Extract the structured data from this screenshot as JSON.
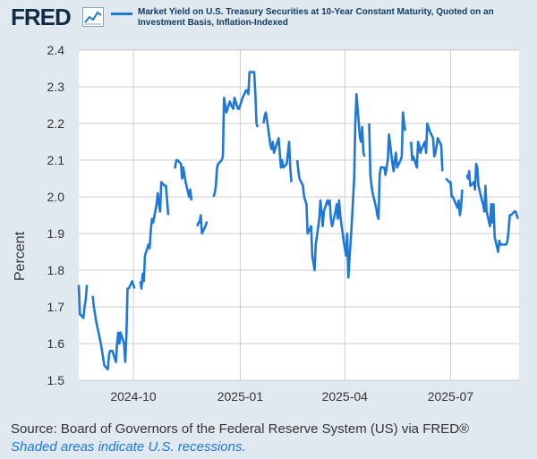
{
  "header": {
    "logo": "FRED",
    "graph_icon": "line-graph-icon",
    "legend_label": "Market Yield on U.S. Treasury Securities at 10-Year Constant Maturity, Quoted on an Investment Basis, Inflation-Indexed"
  },
  "colors": {
    "background": "#e1e9f0",
    "plot_background": "#ffffff",
    "series": "#1f78d6",
    "grid": "#cccccc"
  },
  "footer": {
    "source": "Source: Board of Governors of the Federal Reserve System (US) via FRED®",
    "notes": "Shaded areas indicate U.S. recessions."
  },
  "chart_data": {
    "type": "line",
    "xlabel": "",
    "ylabel": "Percent",
    "ylim": [
      1.5,
      2.4
    ],
    "yticks": [
      "1.5",
      "1.6",
      "1.7",
      "1.8",
      "1.9",
      "2.0",
      "2.1",
      "2.2",
      "2.3",
      "2.4"
    ],
    "xlim": [
      "2024-08-15",
      "2025-08-29"
    ],
    "xticks": [
      {
        "date": "2024-10-01",
        "label": "2024-10"
      },
      {
        "date": "2025-01-01",
        "label": "2025-01"
      },
      {
        "date": "2025-04-01",
        "label": "2025-04"
      },
      {
        "date": "2025-07-01",
        "label": "2025-07"
      }
    ],
    "grid": true,
    "series": [
      {
        "name": "Market Yield on U.S. Treasury Securities at 10-Year Constant Maturity, Quoted on an Investment Basis, Inflation-Indexed",
        "points": [
          [
            "2024-08-15",
            1.76
          ],
          [
            "2024-08-16",
            1.68
          ],
          [
            "2024-08-19",
            1.67
          ],
          [
            "2024-08-20",
            1.7
          ],
          [
            "2024-08-21",
            1.72
          ],
          [
            "2024-08-22",
            1.76
          ],
          [
            "2024-08-23",
            null
          ],
          [
            "2024-08-27",
            1.73
          ],
          [
            "2024-08-28",
            1.7
          ],
          [
            "2024-08-29",
            1.68
          ],
          [
            "2024-08-30",
            1.66
          ],
          [
            "2024-09-03",
            1.6
          ],
          [
            "2024-09-04",
            1.58
          ],
          [
            "2024-09-05",
            1.56
          ],
          [
            "2024-09-06",
            1.54
          ],
          [
            "2024-09-09",
            1.53
          ],
          [
            "2024-09-10",
            1.57
          ],
          [
            "2024-09-11",
            1.58
          ],
          [
            "2024-09-12",
            1.58
          ],
          [
            "2024-09-13",
            1.58
          ],
          [
            "2024-09-16",
            1.55
          ],
          [
            "2024-09-17",
            1.6
          ],
          [
            "2024-09-18",
            1.63
          ],
          [
            "2024-09-19",
            1.6
          ],
          [
            "2024-09-20",
            1.63
          ],
          [
            "2024-09-23",
            1.6
          ],
          [
            "2024-09-24",
            1.55
          ],
          [
            "2024-09-25",
            1.62
          ],
          [
            "2024-09-26",
            1.75
          ],
          [
            "2024-09-27",
            1.75
          ],
          [
            "2024-09-30",
            1.77
          ],
          [
            "2024-10-01",
            1.76
          ],
          [
            "2024-10-02",
            1.75
          ],
          [
            "2024-10-03",
            null
          ],
          [
            "2024-10-07",
            1.77
          ],
          [
            "2024-10-08",
            1.75
          ],
          [
            "2024-10-09",
            1.79
          ],
          [
            "2024-10-10",
            1.77
          ],
          [
            "2024-10-11",
            1.84
          ],
          [
            "2024-10-14",
            1.87
          ],
          [
            "2024-10-15",
            1.86
          ],
          [
            "2024-10-16",
            1.91
          ],
          [
            "2024-10-17",
            1.94
          ],
          [
            "2024-10-18",
            1.93
          ],
          [
            "2024-10-21",
            1.98
          ],
          [
            "2024-10-22",
            2.01
          ],
          [
            "2024-10-23",
            1.98
          ],
          [
            "2024-10-24",
            1.96
          ],
          [
            "2024-10-25",
            2.04
          ],
          [
            "2024-10-28",
            2.03
          ],
          [
            "2024-10-29",
            2.03
          ],
          [
            "2024-10-30",
            1.99
          ],
          [
            "2024-10-31",
            1.95
          ],
          [
            "2024-11-01",
            null
          ],
          [
            "2024-11-05",
            2.08
          ],
          [
            "2024-11-06",
            2.08
          ],
          [
            "2024-11-07",
            2.1
          ],
          [
            "2024-11-08",
            2.1
          ],
          [
            "2024-11-11",
            2.09
          ],
          [
            "2024-11-12",
            2.05
          ],
          [
            "2024-11-13",
            2.08
          ],
          [
            "2024-11-14",
            2.06
          ],
          [
            "2024-11-15",
            2.04
          ],
          [
            "2024-11-18",
            2.0
          ],
          [
            "2024-11-19",
            2.02
          ],
          [
            "2024-11-20",
            1.99
          ],
          [
            "2024-11-21",
            null
          ],
          [
            "2024-11-25",
            1.92
          ],
          [
            "2024-11-26",
            1.93
          ],
          [
            "2024-11-27",
            1.93
          ],
          [
            "2024-11-28",
            1.95
          ],
          [
            "2024-11-29",
            1.9
          ],
          [
            "2024-12-02",
            1.92
          ],
          [
            "2024-12-03",
            1.93
          ],
          [
            "2024-12-04",
            1.93
          ],
          [
            "2024-12-05",
            null
          ],
          [
            "2024-12-09",
            2.0
          ],
          [
            "2024-12-10",
            2.01
          ],
          [
            "2024-12-11",
            2.03
          ],
          [
            "2024-12-12",
            2.08
          ],
          [
            "2024-12-13",
            2.09
          ],
          [
            "2024-12-16",
            2.1
          ],
          [
            "2024-12-17",
            2.11
          ],
          [
            "2024-12-18",
            2.27
          ],
          [
            "2024-12-19",
            2.25
          ],
          [
            "2024-12-20",
            2.23
          ],
          [
            "2024-12-23",
            2.26
          ],
          [
            "2024-12-24",
            2.25
          ],
          [
            "2024-12-26",
            2.24
          ],
          [
            "2024-12-27",
            2.27
          ],
          [
            "2024-12-30",
            2.24
          ],
          [
            "2024-12-31",
            2.24
          ],
          [
            "2025-01-02",
            2.26
          ],
          [
            "2025-01-03",
            2.27
          ],
          [
            "2025-01-06",
            2.29
          ],
          [
            "2025-01-07",
            2.29
          ],
          [
            "2025-01-08",
            2.28
          ],
          [
            "2025-01-09",
            2.34
          ],
          [
            "2025-01-10",
            2.34
          ],
          [
            "2025-01-13",
            2.34
          ],
          [
            "2025-01-14",
            2.28
          ],
          [
            "2025-01-15",
            2.2
          ],
          [
            "2025-01-16",
            2.19
          ],
          [
            "2025-01-17",
            null
          ],
          [
            "2025-01-21",
            2.2
          ],
          [
            "2025-01-22",
            2.22
          ],
          [
            "2025-01-23",
            2.23
          ],
          [
            "2025-01-24",
            2.21
          ],
          [
            "2025-01-27",
            2.14
          ],
          [
            "2025-01-28",
            2.13
          ],
          [
            "2025-01-29",
            2.15
          ],
          [
            "2025-01-30",
            2.12
          ],
          [
            "2025-01-31",
            2.13
          ],
          [
            "2025-02-03",
            2.16
          ],
          [
            "2025-02-04",
            2.12
          ],
          [
            "2025-02-05",
            2.08
          ],
          [
            "2025-02-06",
            2.1
          ],
          [
            "2025-02-07",
            2.08
          ],
          [
            "2025-02-10",
            2.09
          ],
          [
            "2025-02-11",
            2.12
          ],
          [
            "2025-02-12",
            2.15
          ],
          [
            "2025-02-13",
            2.08
          ],
          [
            "2025-02-14",
            2.04
          ],
          [
            "2025-02-15",
            null
          ],
          [
            "2025-02-19",
            2.1
          ],
          [
            "2025-02-20",
            2.07
          ],
          [
            "2025-02-21",
            2.05
          ],
          [
            "2025-02-24",
            2.03
          ],
          [
            "2025-02-25",
            2.0
          ],
          [
            "2025-02-26",
            1.99
          ],
          [
            "2025-02-27",
            1.98
          ],
          [
            "2025-02-28",
            1.9
          ],
          [
            "2025-03-03",
            1.92
          ],
          [
            "2025-03-04",
            1.84
          ],
          [
            "2025-03-05",
            1.82
          ],
          [
            "2025-03-06",
            1.8
          ],
          [
            "2025-03-07",
            1.87
          ],
          [
            "2025-03-10",
            1.94
          ],
          [
            "2025-03-11",
            1.99
          ],
          [
            "2025-03-12",
            1.96
          ],
          [
            "2025-03-13",
            1.92
          ],
          [
            "2025-03-14",
            1.96
          ],
          [
            "2025-03-17",
            1.99
          ],
          [
            "2025-03-18",
            1.98
          ],
          [
            "2025-03-19",
            1.99
          ],
          [
            "2025-03-20",
            1.94
          ],
          [
            "2025-03-21",
            1.92
          ],
          [
            "2025-03-24",
            1.96
          ],
          [
            "2025-03-25",
            1.98
          ],
          [
            "2025-03-26",
            1.94
          ],
          [
            "2025-03-27",
            1.99
          ],
          [
            "2025-03-28",
            1.95
          ],
          [
            "2025-03-31",
            1.88
          ],
          [
            "2025-04-01",
            1.86
          ],
          [
            "2025-04-02",
            1.84
          ],
          [
            "2025-04-03",
            1.9
          ],
          [
            "2025-04-04",
            1.78
          ],
          [
            "2025-04-07",
            1.93
          ],
          [
            "2025-04-08",
            1.99
          ],
          [
            "2025-04-09",
            2.05
          ],
          [
            "2025-04-10",
            2.2
          ],
          [
            "2025-04-11",
            2.28
          ],
          [
            "2025-04-14",
            2.16
          ],
          [
            "2025-04-15",
            2.15
          ],
          [
            "2025-04-16",
            2.19
          ],
          [
            "2025-04-17",
            2.12
          ],
          [
            "2025-04-18",
            2.11
          ],
          [
            "2025-04-19",
            null
          ],
          [
            "2025-04-22",
            2.2
          ],
          [
            "2025-04-23",
            2.06
          ],
          [
            "2025-04-24",
            2.03
          ],
          [
            "2025-04-25",
            2.01
          ],
          [
            "2025-04-28",
            1.97
          ],
          [
            "2025-04-29",
            1.95
          ],
          [
            "2025-04-30",
            1.94
          ],
          [
            "2025-05-01",
            2.06
          ],
          [
            "2025-05-02",
            2.08
          ],
          [
            "2025-05-05",
            2.08
          ],
          [
            "2025-05-06",
            2.06
          ],
          [
            "2025-05-07",
            2.08
          ],
          [
            "2025-05-08",
            2.1
          ],
          [
            "2025-05-09",
            2.17
          ],
          [
            "2025-05-12",
            2.09
          ],
          [
            "2025-05-13",
            2.07
          ],
          [
            "2025-05-14",
            2.1
          ],
          [
            "2025-05-15",
            2.12
          ],
          [
            "2025-05-16",
            2.08
          ],
          [
            "2025-05-19",
            2.1
          ],
          [
            "2025-05-20",
            2.11
          ],
          [
            "2025-05-21",
            2.23
          ],
          [
            "2025-05-22",
            2.2
          ],
          [
            "2025-05-23",
            2.18
          ],
          [
            "2025-05-27",
            null
          ],
          [
            "2025-05-28",
            2.15
          ],
          [
            "2025-05-29",
            2.1
          ],
          [
            "2025-05-30",
            2.11
          ],
          [
            "2025-06-02",
            2.08
          ],
          [
            "2025-06-03",
            2.15
          ],
          [
            "2025-06-04",
            2.14
          ],
          [
            "2025-06-05",
            2.12
          ],
          [
            "2025-06-06",
            2.13
          ],
          [
            "2025-06-09",
            2.15
          ],
          [
            "2025-06-10",
            2.12
          ],
          [
            "2025-06-11",
            2.2
          ],
          [
            "2025-06-12",
            2.19
          ],
          [
            "2025-06-13",
            2.18
          ],
          [
            "2025-06-16",
            2.16
          ],
          [
            "2025-06-17",
            2.11
          ],
          [
            "2025-06-18",
            2.12
          ],
          [
            "2025-06-20",
            2.16
          ],
          [
            "2025-06-23",
            2.14
          ],
          [
            "2025-06-24",
            2.07
          ],
          [
            "2025-06-25",
            null
          ],
          [
            "2025-06-27",
            2.05
          ],
          [
            "2025-06-30",
            2.04
          ],
          [
            "2025-07-01",
            2.04
          ],
          [
            "2025-07-02",
            2.0
          ],
          [
            "2025-07-03",
            2.0
          ],
          [
            "2025-07-07",
            1.97
          ],
          [
            "2025-07-08",
            1.99
          ],
          [
            "2025-07-09",
            1.95
          ],
          [
            "2025-07-10",
            1.97
          ],
          [
            "2025-07-11",
            2.02
          ],
          [
            "2025-07-12",
            null
          ],
          [
            "2025-07-15",
            2.06
          ],
          [
            "2025-07-16",
            2.05
          ],
          [
            "2025-07-17",
            2.07
          ],
          [
            "2025-07-18",
            2.03
          ],
          [
            "2025-07-21",
            2.04
          ],
          [
            "2025-07-22",
            2.02
          ],
          [
            "2025-07-23",
            2.09
          ],
          [
            "2025-07-24",
            2.08
          ],
          [
            "2025-07-25",
            2.03
          ],
          [
            "2025-07-28",
            1.99
          ],
          [
            "2025-07-29",
            1.98
          ],
          [
            "2025-07-30",
            1.96
          ],
          [
            "2025-07-31",
            2.03
          ],
          [
            "2025-08-01",
            1.96
          ],
          [
            "2025-08-04",
            1.92
          ],
          [
            "2025-08-05",
            1.98
          ],
          [
            "2025-08-06",
            1.93
          ],
          [
            "2025-08-07",
            1.98
          ],
          [
            "2025-08-08",
            1.89
          ],
          [
            "2025-08-11",
            1.85
          ],
          [
            "2025-08-12",
            1.88
          ],
          [
            "2025-08-13",
            1.87
          ],
          [
            "2025-08-14",
            1.87
          ],
          [
            "2025-08-15",
            1.87
          ],
          [
            "2025-08-18",
            1.87
          ],
          [
            "2025-08-19",
            1.88
          ],
          [
            "2025-08-20",
            1.91
          ],
          [
            "2025-08-21",
            1.95
          ],
          [
            "2025-08-22",
            1.95
          ],
          [
            "2025-08-25",
            1.96
          ],
          [
            "2025-08-26",
            1.96
          ],
          [
            "2025-08-27",
            1.95
          ],
          [
            "2025-08-28",
            1.94
          ]
        ]
      }
    ]
  }
}
